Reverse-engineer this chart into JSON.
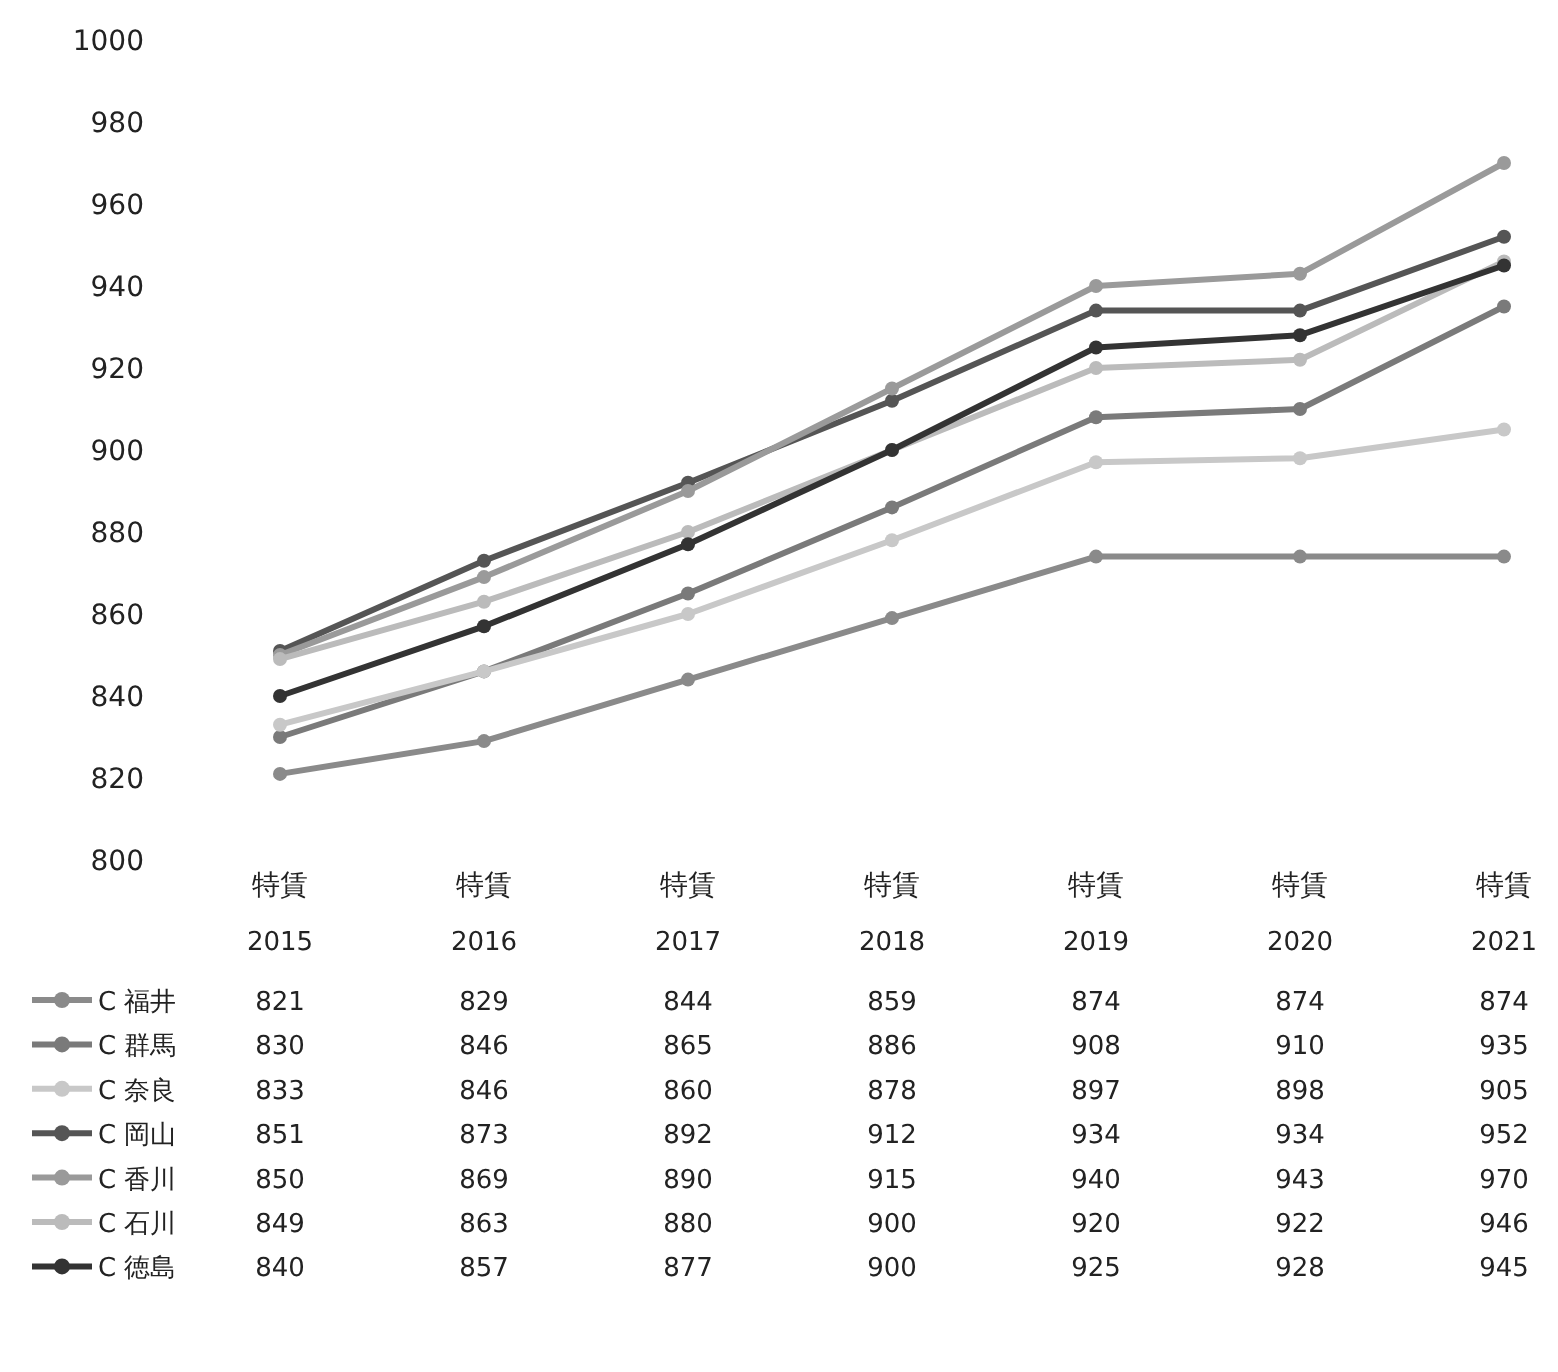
{
  "chart_data": {
    "type": "line",
    "categories": [
      "特賃 2015",
      "特賃 2016",
      "特賃 2017",
      "特賃 2018",
      "特賃 2019",
      "特賃 2020",
      "特賃 2021"
    ],
    "series": [
      {
        "name": "C 福井",
        "color": "#8a8a8a",
        "values": [
          821,
          829,
          844,
          859,
          874,
          874,
          874
        ]
      },
      {
        "name": "C 群馬",
        "color": "#7a7a7a",
        "values": [
          830,
          846,
          865,
          886,
          908,
          910,
          935
        ]
      },
      {
        "name": "C 奈良",
        "color": "#c8c8c8",
        "values": [
          833,
          846,
          860,
          878,
          897,
          898,
          905
        ]
      },
      {
        "name": "C 岡山",
        "color": "#555555",
        "values": [
          851,
          873,
          892,
          912,
          934,
          934,
          952
        ]
      },
      {
        "name": "C 香川",
        "color": "#9a9a9a",
        "values": [
          850,
          869,
          890,
          915,
          940,
          943,
          970
        ]
      },
      {
        "name": "C 石川",
        "color": "#bbbbbb",
        "values": [
          849,
          863,
          880,
          900,
          920,
          922,
          946
        ]
      },
      {
        "name": "C 徳島",
        "color": "#333333",
        "values": [
          840,
          857,
          877,
          900,
          925,
          928,
          945
        ]
      }
    ],
    "ylim": [
      800,
      1000
    ],
    "yticks": [
      800,
      820,
      840,
      860,
      880,
      900,
      920,
      940,
      960,
      980,
      1000
    ],
    "marker": "circle",
    "line_style": "solid",
    "grid": false,
    "legend": "bottom",
    "data_labels": true
  }
}
